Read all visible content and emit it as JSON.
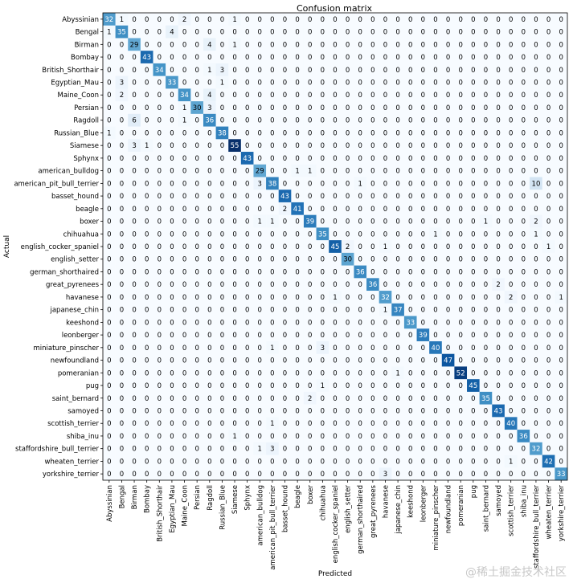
{
  "chart_data": {
    "type": "heatmap",
    "title": "Confusion matrix",
    "xlabel": "Predicted",
    "ylabel": "Actual",
    "categories": [
      "Abyssinian",
      "Bengal",
      "Birman",
      "Bombay",
      "British_Shorthair",
      "Egyptian_Mau",
      "Maine_Coon",
      "Persian",
      "Ragdoll",
      "Russian_Blue",
      "Siamese",
      "Sphynx",
      "american_bulldog",
      "american_pit_bull_terrier",
      "basset_hound",
      "beagle",
      "boxer",
      "chihuahua",
      "english_cocker_spaniel",
      "english_setter",
      "german_shorthaired",
      "great_pyrenees",
      "havanese",
      "japanese_chin",
      "keeshond",
      "leonberger",
      "miniature_pinscher",
      "newfoundland",
      "pomeranian",
      "pug",
      "saint_bernard",
      "samoyed",
      "scottish_terrier",
      "shiba_inu",
      "staffordshire_bull_terrier",
      "wheaten_terrier",
      "yorkshire_terrier"
    ],
    "matrix": [
      [
        32,
        1,
        0,
        0,
        0,
        0,
        2,
        0,
        0,
        0,
        1,
        0,
        0,
        0,
        0,
        0,
        0,
        0,
        0,
        0,
        0,
        0,
        0,
        0,
        0,
        0,
        0,
        0,
        0,
        0,
        0,
        0,
        0,
        0,
        0,
        0,
        0
      ],
      [
        1,
        35,
        0,
        0,
        0,
        4,
        0,
        0,
        0,
        0,
        0,
        0,
        0,
        0,
        0,
        0,
        0,
        0,
        0,
        0,
        0,
        0,
        0,
        0,
        0,
        0,
        0,
        0,
        0,
        0,
        0,
        0,
        0,
        0,
        0,
        0,
        0
      ],
      [
        0,
        0,
        29,
        0,
        0,
        0,
        0,
        0,
        4,
        0,
        1,
        0,
        0,
        0,
        0,
        0,
        0,
        0,
        0,
        0,
        0,
        0,
        0,
        0,
        0,
        0,
        0,
        0,
        0,
        0,
        0,
        0,
        0,
        0,
        0,
        0,
        0
      ],
      [
        0,
        0,
        0,
        43,
        0,
        0,
        0,
        0,
        0,
        0,
        0,
        0,
        0,
        0,
        0,
        0,
        0,
        0,
        0,
        0,
        0,
        0,
        0,
        0,
        0,
        0,
        0,
        0,
        0,
        0,
        0,
        0,
        0,
        0,
        0,
        0,
        0
      ],
      [
        0,
        0,
        0,
        0,
        34,
        0,
        0,
        0,
        1,
        3,
        0,
        0,
        0,
        0,
        0,
        0,
        0,
        0,
        0,
        0,
        0,
        0,
        0,
        0,
        0,
        0,
        0,
        0,
        0,
        0,
        0,
        0,
        0,
        0,
        0,
        0,
        0
      ],
      [
        0,
        3,
        0,
        0,
        0,
        33,
        0,
        0,
        0,
        1,
        0,
        0,
        0,
        0,
        0,
        0,
        0,
        0,
        0,
        0,
        0,
        0,
        0,
        0,
        0,
        0,
        0,
        0,
        0,
        0,
        0,
        0,
        0,
        0,
        0,
        0,
        0
      ],
      [
        0,
        2,
        0,
        0,
        0,
        0,
        34,
        0,
        4,
        0,
        0,
        0,
        0,
        0,
        0,
        0,
        0,
        0,
        0,
        0,
        0,
        0,
        0,
        0,
        0,
        0,
        0,
        0,
        0,
        0,
        0,
        0,
        0,
        0,
        0,
        0,
        0
      ],
      [
        0,
        0,
        0,
        0,
        0,
        0,
        1,
        30,
        3,
        0,
        0,
        0,
        0,
        0,
        0,
        0,
        0,
        0,
        0,
        0,
        0,
        0,
        0,
        0,
        0,
        0,
        0,
        0,
        0,
        0,
        0,
        0,
        0,
        0,
        0,
        0,
        0
      ],
      [
        0,
        0,
        6,
        0,
        0,
        0,
        1,
        0,
        36,
        0,
        0,
        0,
        0,
        0,
        0,
        0,
        0,
        0,
        0,
        0,
        0,
        0,
        0,
        0,
        0,
        0,
        0,
        0,
        0,
        0,
        0,
        0,
        0,
        0,
        0,
        0,
        0
      ],
      [
        1,
        0,
        0,
        0,
        0,
        0,
        0,
        0,
        0,
        38,
        0,
        0,
        0,
        0,
        0,
        0,
        0,
        0,
        0,
        0,
        0,
        0,
        0,
        0,
        0,
        0,
        0,
        0,
        0,
        0,
        0,
        0,
        0,
        0,
        0,
        0,
        0
      ],
      [
        0,
        0,
        3,
        1,
        0,
        0,
        0,
        0,
        0,
        0,
        55,
        0,
        0,
        0,
        0,
        0,
        0,
        0,
        0,
        0,
        0,
        0,
        0,
        0,
        0,
        0,
        0,
        0,
        0,
        0,
        0,
        0,
        0,
        0,
        0,
        0,
        0
      ],
      [
        0,
        0,
        0,
        0,
        0,
        0,
        0,
        0,
        0,
        0,
        0,
        43,
        0,
        0,
        0,
        0,
        0,
        0,
        0,
        0,
        0,
        0,
        0,
        0,
        0,
        0,
        0,
        0,
        0,
        0,
        0,
        0,
        0,
        0,
        0,
        0,
        0
      ],
      [
        0,
        0,
        0,
        0,
        0,
        0,
        0,
        0,
        0,
        0,
        0,
        0,
        29,
        0,
        0,
        1,
        1,
        0,
        0,
        0,
        0,
        0,
        0,
        0,
        0,
        0,
        0,
        0,
        0,
        0,
        0,
        0,
        0,
        0,
        0,
        0,
        0
      ],
      [
        0,
        0,
        0,
        0,
        0,
        0,
        0,
        0,
        0,
        0,
        0,
        0,
        3,
        38,
        0,
        0,
        0,
        0,
        0,
        0,
        1,
        0,
        0,
        0,
        0,
        0,
        0,
        0,
        0,
        0,
        0,
        0,
        0,
        0,
        10,
        0,
        0
      ],
      [
        0,
        0,
        0,
        0,
        0,
        0,
        0,
        0,
        0,
        0,
        0,
        0,
        0,
        0,
        43,
        0,
        0,
        0,
        0,
        0,
        0,
        0,
        0,
        0,
        0,
        0,
        0,
        0,
        0,
        0,
        0,
        0,
        0,
        0,
        0,
        0,
        0
      ],
      [
        0,
        0,
        0,
        0,
        0,
        0,
        0,
        0,
        0,
        0,
        0,
        0,
        0,
        0,
        2,
        41,
        0,
        0,
        0,
        0,
        0,
        0,
        0,
        0,
        0,
        0,
        0,
        0,
        0,
        0,
        0,
        0,
        0,
        0,
        0,
        0,
        0
      ],
      [
        0,
        0,
        0,
        0,
        0,
        0,
        0,
        0,
        0,
        0,
        0,
        0,
        1,
        1,
        0,
        0,
        39,
        0,
        0,
        0,
        0,
        0,
        0,
        0,
        0,
        0,
        0,
        0,
        0,
        0,
        1,
        0,
        0,
        0,
        2,
        0,
        0
      ],
      [
        0,
        0,
        0,
        0,
        0,
        0,
        0,
        0,
        0,
        0,
        0,
        0,
        0,
        0,
        0,
        0,
        0,
        35,
        0,
        0,
        0,
        0,
        0,
        0,
        0,
        0,
        1,
        0,
        0,
        0,
        0,
        0,
        0,
        0,
        1,
        0,
        0
      ],
      [
        0,
        0,
        0,
        0,
        0,
        0,
        0,
        0,
        0,
        0,
        0,
        0,
        0,
        0,
        0,
        0,
        0,
        0,
        45,
        2,
        0,
        0,
        1,
        0,
        0,
        0,
        0,
        0,
        0,
        0,
        0,
        0,
        0,
        0,
        0,
        1,
        0
      ],
      [
        0,
        0,
        0,
        0,
        0,
        0,
        0,
        0,
        0,
        0,
        0,
        0,
        0,
        0,
        0,
        0,
        0,
        0,
        0,
        30,
        0,
        0,
        0,
        0,
        0,
        0,
        0,
        0,
        0,
        0,
        0,
        0,
        0,
        0,
        0,
        0,
        0
      ],
      [
        0,
        0,
        0,
        0,
        0,
        0,
        0,
        0,
        0,
        0,
        0,
        0,
        0,
        0,
        0,
        0,
        0,
        0,
        0,
        0,
        36,
        0,
        0,
        0,
        0,
        0,
        0,
        0,
        0,
        0,
        0,
        0,
        0,
        0,
        0,
        0,
        0
      ],
      [
        0,
        0,
        0,
        0,
        0,
        0,
        0,
        0,
        0,
        0,
        0,
        0,
        0,
        0,
        0,
        0,
        0,
        0,
        0,
        0,
        0,
        36,
        0,
        0,
        0,
        0,
        0,
        0,
        0,
        0,
        0,
        2,
        0,
        0,
        0,
        0,
        0
      ],
      [
        0,
        0,
        0,
        0,
        0,
        0,
        0,
        0,
        0,
        0,
        0,
        0,
        0,
        0,
        0,
        0,
        0,
        0,
        1,
        0,
        0,
        0,
        32,
        0,
        0,
        0,
        0,
        0,
        0,
        0,
        0,
        0,
        2,
        0,
        0,
        0,
        1
      ],
      [
        0,
        0,
        0,
        0,
        0,
        0,
        0,
        0,
        0,
        0,
        0,
        0,
        0,
        0,
        0,
        0,
        0,
        0,
        0,
        0,
        0,
        0,
        1,
        37,
        0,
        0,
        0,
        0,
        0,
        0,
        0,
        0,
        0,
        0,
        0,
        0,
        0
      ],
      [
        0,
        0,
        0,
        0,
        0,
        0,
        0,
        0,
        0,
        0,
        0,
        0,
        0,
        0,
        0,
        0,
        0,
        0,
        0,
        0,
        0,
        0,
        0,
        0,
        33,
        0,
        0,
        0,
        0,
        0,
        0,
        0,
        0,
        0,
        0,
        0,
        0
      ],
      [
        0,
        0,
        0,
        0,
        0,
        0,
        0,
        0,
        0,
        0,
        0,
        0,
        0,
        0,
        0,
        0,
        0,
        0,
        0,
        0,
        0,
        0,
        0,
        0,
        0,
        39,
        0,
        0,
        0,
        0,
        0,
        0,
        0,
        0,
        0,
        0,
        0
      ],
      [
        0,
        0,
        0,
        0,
        0,
        0,
        0,
        0,
        0,
        0,
        0,
        0,
        0,
        1,
        0,
        0,
        0,
        3,
        0,
        0,
        0,
        0,
        0,
        0,
        0,
        0,
        40,
        0,
        0,
        0,
        0,
        0,
        0,
        0,
        0,
        0,
        0
      ],
      [
        0,
        0,
        0,
        0,
        0,
        0,
        0,
        0,
        0,
        0,
        0,
        0,
        0,
        0,
        0,
        0,
        0,
        0,
        0,
        0,
        0,
        0,
        0,
        0,
        0,
        0,
        0,
        47,
        0,
        0,
        0,
        0,
        0,
        0,
        0,
        0,
        0
      ],
      [
        0,
        0,
        0,
        0,
        0,
        0,
        0,
        0,
        0,
        0,
        0,
        0,
        0,
        0,
        0,
        0,
        0,
        0,
        0,
        0,
        0,
        0,
        0,
        1,
        0,
        0,
        0,
        0,
        52,
        0,
        0,
        0,
        0,
        0,
        0,
        0,
        0
      ],
      [
        0,
        0,
        0,
        0,
        0,
        0,
        0,
        0,
        0,
        0,
        0,
        0,
        0,
        0,
        0,
        0,
        0,
        1,
        0,
        0,
        0,
        0,
        0,
        0,
        0,
        0,
        0,
        0,
        0,
        45,
        0,
        0,
        0,
        0,
        0,
        0,
        0
      ],
      [
        0,
        0,
        0,
        0,
        0,
        0,
        0,
        0,
        0,
        0,
        0,
        0,
        0,
        0,
        0,
        0,
        2,
        0,
        0,
        0,
        0,
        0,
        0,
        0,
        0,
        0,
        0,
        0,
        0,
        0,
        35,
        0,
        0,
        0,
        0,
        0,
        0
      ],
      [
        0,
        0,
        0,
        0,
        0,
        0,
        0,
        0,
        0,
        0,
        0,
        0,
        0,
        0,
        0,
        0,
        0,
        0,
        0,
        0,
        0,
        0,
        0,
        0,
        0,
        0,
        0,
        0,
        0,
        0,
        0,
        43,
        0,
        0,
        0,
        0,
        0
      ],
      [
        0,
        0,
        0,
        0,
        0,
        0,
        0,
        0,
        0,
        0,
        0,
        0,
        0,
        1,
        0,
        0,
        0,
        0,
        0,
        0,
        0,
        0,
        0,
        0,
        0,
        0,
        0,
        0,
        0,
        0,
        0,
        0,
        40,
        0,
        0,
        0,
        0
      ],
      [
        0,
        0,
        0,
        0,
        0,
        0,
        0,
        0,
        0,
        0,
        1,
        0,
        0,
        0,
        0,
        0,
        0,
        0,
        0,
        0,
        0,
        0,
        0,
        0,
        0,
        0,
        0,
        0,
        0,
        0,
        0,
        0,
        0,
        36,
        0,
        0,
        0
      ],
      [
        0,
        0,
        0,
        0,
        0,
        0,
        0,
        0,
        0,
        0,
        0,
        0,
        1,
        3,
        0,
        0,
        0,
        0,
        0,
        0,
        0,
        0,
        0,
        0,
        0,
        0,
        0,
        0,
        0,
        0,
        0,
        0,
        0,
        0,
        32,
        0,
        0
      ],
      [
        0,
        0,
        0,
        0,
        0,
        0,
        0,
        0,
        0,
        0,
        0,
        0,
        0,
        0,
        0,
        0,
        0,
        0,
        0,
        0,
        0,
        0,
        0,
        0,
        0,
        0,
        0,
        0,
        0,
        0,
        0,
        0,
        1,
        0,
        0,
        42,
        0
      ],
      [
        0,
        0,
        0,
        0,
        0,
        0,
        0,
        0,
        0,
        0,
        0,
        0,
        0,
        0,
        0,
        0,
        0,
        0,
        0,
        0,
        0,
        0,
        3,
        0,
        0,
        0,
        0,
        0,
        0,
        0,
        0,
        0,
        0,
        0,
        0,
        0,
        33
      ]
    ],
    "colormap": [
      "#f7fbff",
      "#deebf7",
      "#c6dbef",
      "#9ecae1",
      "#6baed6",
      "#4292c6",
      "#2171b5",
      "#08519c",
      "#08306b"
    ],
    "vmax": 55
  },
  "watermark": "@稀土掘金技术社区"
}
